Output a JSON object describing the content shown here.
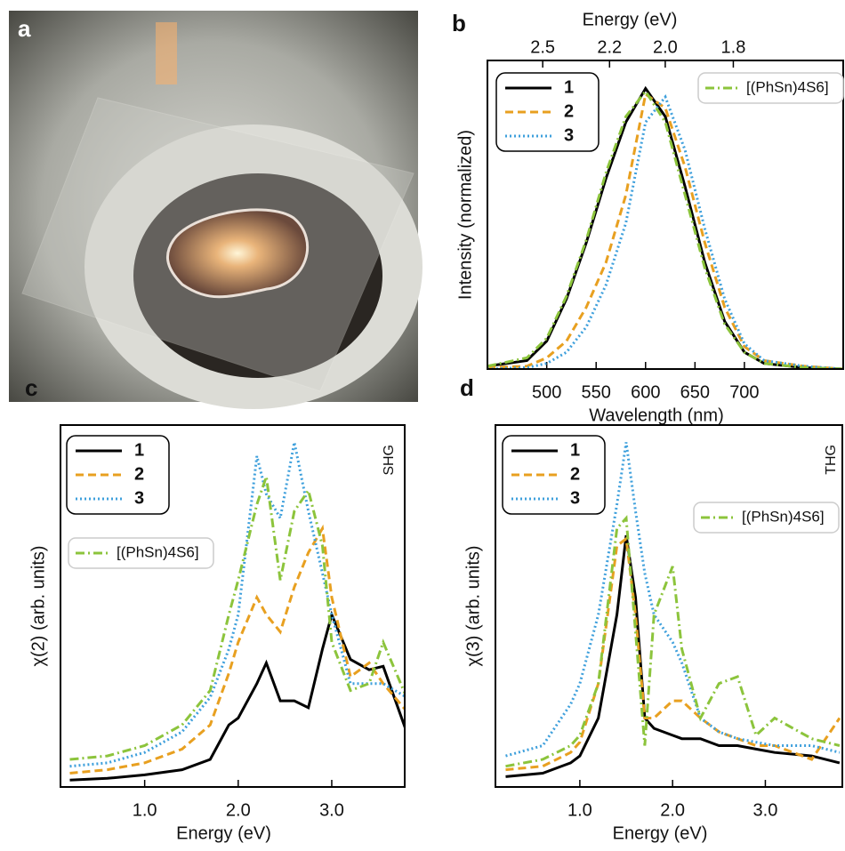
{
  "image": {
    "panel_label": "a"
  },
  "chart_data": [
    {
      "type": "line",
      "panel_label": "b",
      "xlabel": "Wavelength (nm)",
      "ylabel": "Intensity (normalized)",
      "x2label": "Energy (eV)",
      "xlim": [
        440,
        800
      ],
      "ylim": [
        0,
        1.1
      ],
      "xticks": [
        500,
        550,
        600,
        650,
        700
      ],
      "x2ticks": [
        2.5,
        2.2,
        {
          "value": 2,
          "label": "2.0"
        },
        1.8
      ],
      "x": [
        440,
        480,
        500,
        520,
        540,
        560,
        580,
        600,
        620,
        640,
        660,
        680,
        700,
        720,
        760,
        800
      ],
      "series": [
        {
          "name": "1",
          "color": "#000000",
          "dash": "solid",
          "values": [
            0.01,
            0.03,
            0.1,
            0.25,
            0.45,
            0.68,
            0.88,
            1.0,
            0.9,
            0.65,
            0.38,
            0.17,
            0.06,
            0.02,
            0.005,
            0
          ]
        },
        {
          "name": "2",
          "color": "#e8a020",
          "dash": "dashed",
          "values": [
            0.005,
            0.01,
            0.04,
            0.1,
            0.22,
            0.38,
            0.62,
            0.98,
            0.93,
            0.72,
            0.45,
            0.22,
            0.08,
            0.03,
            0.01,
            0
          ]
        },
        {
          "name": "3",
          "color": "#3fa0dc",
          "dash": "dotted",
          "values": [
            0,
            0.005,
            0.02,
            0.06,
            0.15,
            0.3,
            0.52,
            0.88,
            0.97,
            0.78,
            0.5,
            0.25,
            0.09,
            0.03,
            0.01,
            0
          ]
        },
        {
          "name": "[(PhSn)4S6]",
          "color": "#8cc43c",
          "dash": "dashdot",
          "values": [
            0.01,
            0.04,
            0.11,
            0.26,
            0.46,
            0.7,
            0.9,
            0.99,
            0.88,
            0.62,
            0.36,
            0.16,
            0.06,
            0.02,
            0.005,
            0
          ]
        }
      ]
    },
    {
      "type": "line",
      "panel_label": "c",
      "xlabel": "Energy (eV)",
      "ylabel": "χ(2) (arb. units)",
      "side_label": "SHG",
      "xlim": [
        0.1,
        3.78
      ],
      "ylim": [
        0,
        1.05
      ],
      "xticks": [
        {
          "value": 1,
          "label": "1.0"
        },
        {
          "value": 2,
          "label": "2.0"
        },
        {
          "value": 3,
          "label": "3.0"
        }
      ],
      "x": [
        0.2,
        0.6,
        1.0,
        1.4,
        1.7,
        1.9,
        2.0,
        2.2,
        2.3,
        2.45,
        2.6,
        2.75,
        2.9,
        3.0,
        3.2,
        3.4,
        3.55,
        3.8
      ],
      "series": [
        {
          "name": "1",
          "color": "#000000",
          "dash": "solid",
          "values": [
            0.02,
            0.025,
            0.035,
            0.05,
            0.08,
            0.18,
            0.2,
            0.3,
            0.36,
            0.25,
            0.25,
            0.23,
            0.4,
            0.5,
            0.37,
            0.34,
            0.35,
            0.16
          ]
        },
        {
          "name": "2",
          "color": "#e8a020",
          "dash": "dashed",
          "values": [
            0.04,
            0.05,
            0.07,
            0.11,
            0.18,
            0.33,
            0.42,
            0.55,
            0.5,
            0.45,
            0.58,
            0.68,
            0.75,
            0.55,
            0.32,
            0.36,
            0.3,
            0.22
          ]
        },
        {
          "name": "3",
          "color": "#3fa0dc",
          "dash": "dotted",
          "values": [
            0.06,
            0.07,
            0.1,
            0.16,
            0.26,
            0.4,
            0.5,
            0.96,
            0.85,
            0.78,
            1.0,
            0.8,
            0.62,
            0.5,
            0.3,
            0.3,
            0.3,
            0.26
          ]
        },
        {
          "name": "[(PhSn)4S6]",
          "color": "#8cc43c",
          "dash": "dashdot",
          "values": [
            0.08,
            0.09,
            0.12,
            0.18,
            0.28,
            0.5,
            0.6,
            0.82,
            0.9,
            0.6,
            0.8,
            0.86,
            0.7,
            0.42,
            0.28,
            0.3,
            0.42,
            0.26
          ]
        }
      ]
    },
    {
      "type": "line",
      "panel_label": "d",
      "xlabel": "Energy (eV)",
      "ylabel": "χ(3) (arb. units)",
      "side_label": "THG",
      "xlim": [
        0.09,
        3.83
      ],
      "ylim": [
        0,
        1.05
      ],
      "xticks": [
        {
          "value": 1,
          "label": "1.0"
        },
        {
          "value": 2,
          "label": "2.0"
        },
        {
          "value": 3,
          "label": "3.0"
        }
      ],
      "x": [
        0.2,
        0.6,
        0.9,
        1.0,
        1.2,
        1.4,
        1.5,
        1.6,
        1.7,
        1.8,
        2.0,
        2.1,
        2.3,
        2.5,
        2.7,
        2.9,
        3.1,
        3.5,
        3.8
      ],
      "series": [
        {
          "name": "1",
          "color": "#000000",
          "dash": "solid",
          "values": [
            0.03,
            0.04,
            0.07,
            0.09,
            0.2,
            0.5,
            0.73,
            0.55,
            0.2,
            0.17,
            0.15,
            0.14,
            0.14,
            0.12,
            0.12,
            0.11,
            0.1,
            0.09,
            0.07
          ]
        },
        {
          "name": "2",
          "color": "#e8a020",
          "dash": "dashed",
          "values": [
            0.05,
            0.06,
            0.1,
            0.13,
            0.3,
            0.7,
            0.72,
            0.5,
            0.2,
            0.2,
            0.25,
            0.25,
            0.2,
            0.16,
            0.14,
            0.12,
            0.12,
            0.08,
            0.2
          ]
        },
        {
          "name": "3",
          "color": "#3fa0dc",
          "dash": "dotted",
          "values": [
            0.09,
            0.12,
            0.24,
            0.3,
            0.5,
            0.82,
            1.0,
            0.8,
            0.62,
            0.5,
            0.42,
            0.36,
            0.2,
            0.16,
            0.14,
            0.13,
            0.12,
            0.12,
            0.1
          ]
        },
        {
          "name": "[(PhSn)4S6]",
          "color": "#8cc43c",
          "dash": "dashdot",
          "values": [
            0.06,
            0.08,
            0.12,
            0.15,
            0.3,
            0.75,
            0.78,
            0.45,
            0.12,
            0.5,
            0.64,
            0.4,
            0.2,
            0.3,
            0.32,
            0.15,
            0.2,
            0.14,
            0.12
          ]
        }
      ]
    }
  ]
}
